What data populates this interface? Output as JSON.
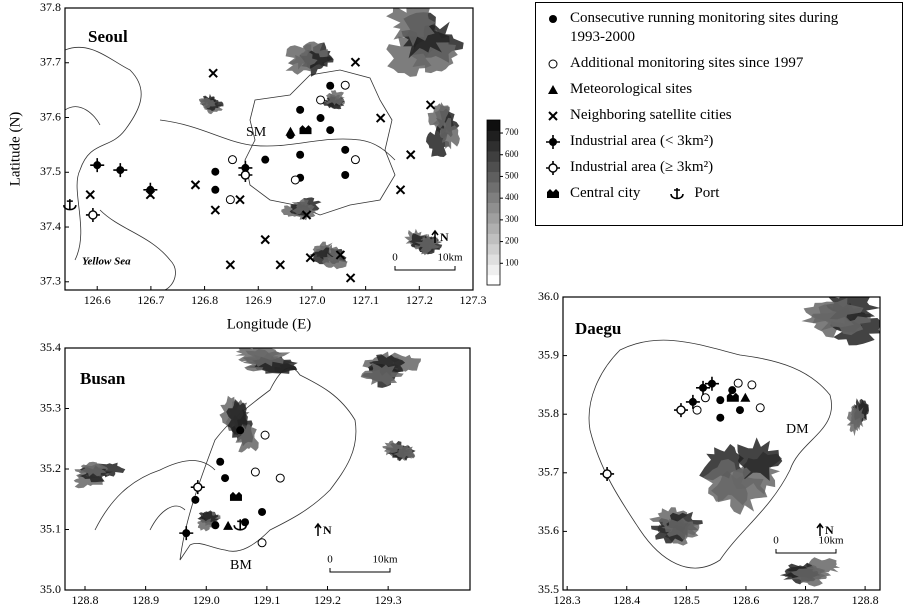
{
  "legend": [
    "Consecutive running monitoring sites during 1993-2000",
    "Additional monitoring sites since 1997",
    "Meteorological sites",
    "Neighboring satellite cities",
    "Industrial area (< 3km²)",
    "Industrial area (≥ 3km²)",
    "Central city",
    "Port"
  ],
  "colorbar": {
    "ticks": [
      100,
      200,
      300,
      400,
      500,
      600,
      700
    ],
    "lim": [
      0,
      760
    ]
  },
  "maps": [
    {
      "title": "Seoul",
      "xlabel": "Longitude (E)",
      "ylabel": "Latitude (N)",
      "annotations": [
        "SM",
        "Yellow Sea"
      ],
      "scale_labels": [
        "0",
        "10km"
      ],
      "north": "N",
      "xlim": [
        126.54,
        127.3
      ],
      "ylim": [
        37.285,
        37.8
      ],
      "xticks": [
        126.6,
        126.7,
        126.8,
        126.9,
        {
          "value": 127,
          "label": "127.0"
        },
        127.1,
        127.2,
        127.3
      ],
      "yticks": [
        37.3,
        37.4,
        37.5,
        37.6,
        37.7,
        37.8
      ],
      "sites": {
        "consecutive": {
          "x": [
            127.034,
            126.978,
            127.016,
            126.96,
            127.034,
            126.978,
            127.062,
            126.913,
            126.82,
            126.978,
            127.062,
            126.82
          ],
          "y": [
            37.658,
            37.614,
            37.599,
            37.568,
            37.577,
            37.532,
            37.541,
            37.523,
            37.501,
            37.49,
            37.495,
            37.468
          ]
        },
        "additional": {
          "x": [
            127.062,
            127.016,
            126.852,
            126.848,
            126.969,
            127.081
          ],
          "y": [
            37.659,
            37.632,
            37.523,
            37.45,
            37.486,
            37.523
          ]
        },
        "meteorological": {
          "x": [
            126.96
          ],
          "y": [
            37.574
          ]
        },
        "satellite": {
          "x": [
            126.816,
            127.081,
            127.221,
            127.128,
            127.184,
            127.165,
            126.783,
            126.82,
            126.866,
            126.99,
            126.913,
            126.848,
            126.941,
            126.997,
            127.053,
            127.072,
            126.699,
            126.587
          ],
          "y": [
            37.681,
            37.701,
            37.623,
            37.599,
            37.532,
            37.468,
            37.477,
            37.431,
            37.45,
            37.422,
            37.377,
            37.331,
            37.331,
            37.344,
            37.349,
            37.307,
            37.459,
            37.459
          ]
        },
        "industrial_small": {
          "x": [
            126.6,
            126.643,
            126.699,
            126.876
          ],
          "y": [
            37.513,
            37.504,
            37.468,
            37.508
          ]
        },
        "industrial_large": {
          "x": [
            126.592,
            126.876
          ],
          "y": [
            37.422,
            37.495
          ]
        },
        "central": {
          "x": [
            126.988
          ],
          "y": [
            37.577
          ]
        },
        "port": {
          "x": [
            126.549
          ],
          "y": [
            37.44
          ]
        }
      }
    },
    {
      "title": "Busan",
      "annotations": [
        "BM"
      ],
      "scale_labels": [
        "0",
        "10km"
      ],
      "north": "N",
      "xlim": [
        128.767,
        129.435
      ],
      "ylim": [
        35.0,
        35.4
      ],
      "xticks": [
        128.8,
        128.9,
        {
          "value": 129,
          "label": "129.0"
        },
        129.1,
        129.2,
        129.3
      ],
      "yticks": [
        {
          "value": 35,
          "label": "35.0"
        },
        35.1,
        35.2,
        35.3,
        35.4
      ],
      "sites": {
        "consecutive": {
          "x": [
            129.023,
            129.056,
            129.031,
            128.982,
            129.015,
            129.092,
            129.064
          ],
          "y": [
            35.212,
            35.264,
            35.185,
            35.149,
            35.107,
            35.129,
            35.112
          ]
        },
        "additional": {
          "x": [
            129.097,
            129.081,
            129.122,
            129.092
          ],
          "y": [
            35.256,
            35.195,
            35.185,
            35.078
          ]
        },
        "meteorological": {
          "x": [
            129.036
          ],
          "y": [
            35.106
          ]
        },
        "industrial_small": {
          "x": [
            128.967
          ],
          "y": [
            35.094
          ]
        },
        "industrial_large": {
          "x": [
            128.986
          ],
          "y": [
            35.17
          ]
        },
        "central": {
          "x": [
            129.049
          ],
          "y": [
            35.154
          ]
        },
        "port": {
          "x": [
            129.056
          ],
          "y": [
            35.107
          ]
        }
      }
    },
    {
      "title": "Daegu",
      "annotations": [
        "DM"
      ],
      "scale_labels": [
        "0",
        "10km"
      ],
      "north": "N",
      "xlim": [
        128.293,
        128.825
      ],
      "ylim": [
        35.5,
        36.0
      ],
      "xticks": [
        128.3,
        128.4,
        128.5,
        128.6,
        128.7,
        128.8
      ],
      "yticks": [
        35.5,
        35.6,
        35.7,
        35.8,
        35.9,
        {
          "value": 36,
          "label": "36.0"
        }
      ],
      "sites": {
        "consecutive": {
          "x": [
            128.557,
            128.557,
            128.59,
            128.577
          ],
          "y": [
            35.824,
            35.794,
            35.807,
            35.841
          ]
        },
        "additional": {
          "x": [
            128.587,
            128.61,
            128.624,
            128.518,
            128.532
          ],
          "y": [
            35.853,
            35.85,
            35.811,
            35.807,
            35.828
          ]
        },
        "meteorological": {
          "x": [
            128.599
          ],
          "y": [
            35.828
          ]
        },
        "industrial_small": {
          "x": [
            128.511,
            128.528,
            128.543
          ],
          "y": [
            35.821,
            35.845,
            35.852
          ]
        },
        "industrial_large": {
          "x": [
            128.491,
            128.367
          ],
          "y": [
            35.807,
            35.698
          ]
        },
        "central": {
          "x": [
            128.578
          ],
          "y": [
            35.828
          ]
        }
      }
    }
  ]
}
